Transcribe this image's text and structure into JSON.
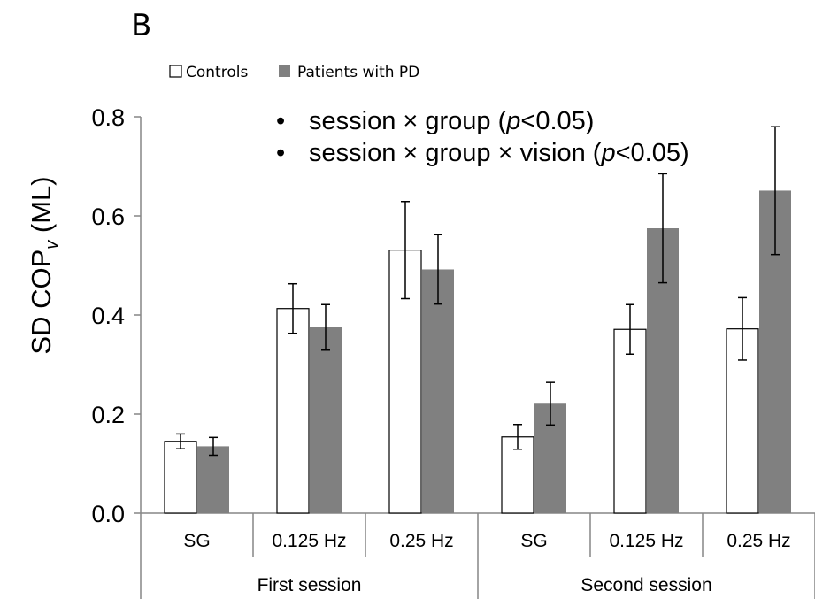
{
  "panel_label": "B",
  "chart_data": {
    "type": "bar",
    "ylabel_main": "SD COP",
    "ylabel_sub": "v",
    "ylabel_tail": " (ML)",
    "ylim": [
      0,
      0.8
    ],
    "yticks": [
      "0.0",
      "0.2",
      "0.4",
      "0.6",
      "0.8"
    ],
    "ytick_values": [
      0,
      0.2,
      0.4,
      0.6,
      0.8
    ],
    "categories": [
      "SG",
      "0.125 Hz",
      "0.25 Hz",
      "SG",
      "0.125 Hz",
      "0.25 Hz"
    ],
    "groups": [
      "First session",
      "Second session"
    ],
    "series": [
      {
        "name": "Controls",
        "color": "#ffffff",
        "values": [
          0.145,
          0.413,
          0.531,
          0.154,
          0.371,
          0.372
        ],
        "errors": [
          0.015,
          0.05,
          0.098,
          0.025,
          0.05,
          0.063
        ]
      },
      {
        "name": "Patients with PD",
        "color": "#808080",
        "values": [
          0.135,
          0.375,
          0.492,
          0.221,
          0.575,
          0.651
        ],
        "errors": [
          0.018,
          0.046,
          0.07,
          0.043,
          0.11,
          0.129
        ]
      }
    ],
    "legend_position": "top-left",
    "grid": false,
    "annotations": [
      {
        "bullet": "•",
        "pre": "session × group (",
        "italic": "p",
        "post": "<0.05)"
      },
      {
        "bullet": "•",
        "pre": "session × group × vision (",
        "italic": "p",
        "post": "<0.05)"
      }
    ]
  }
}
